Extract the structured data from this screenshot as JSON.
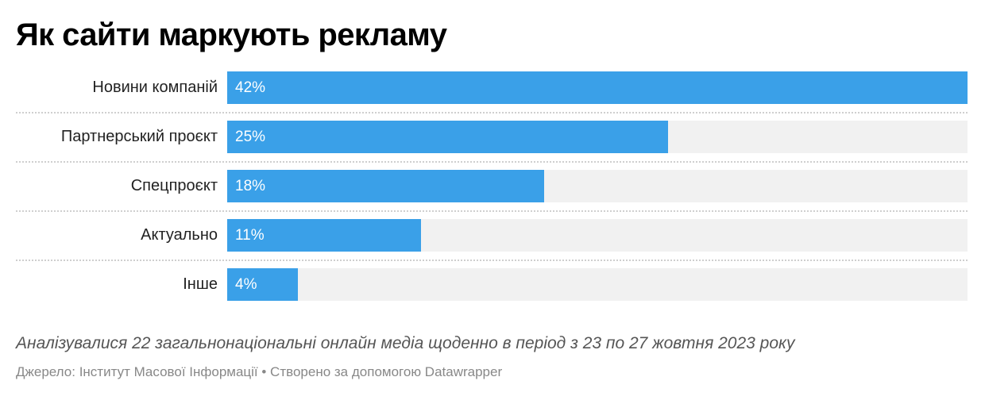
{
  "title": "Як сайти маркують рекламу",
  "note": "Аналізувалися 22 загальнонаціональні онлайн медіа щоденно в період з 23 по 27 жовтня 2023 року",
  "source": "Джерело: Інститут Масової Інформації • Створено за допомогою Datawrapper",
  "colors": {
    "bar": "#3aa0e8",
    "track": "#f1f1f1"
  },
  "chart_data": {
    "type": "bar",
    "orientation": "horizontal",
    "title": "Як сайти маркують рекламу",
    "categories": [
      "Новини компаній",
      "Партнерський проєкт",
      "Спецпроєкт",
      "Актуально",
      "Інше"
    ],
    "values": [
      42,
      25,
      18,
      11,
      4
    ],
    "value_labels": [
      "42%",
      "25%",
      "18%",
      "11%",
      "4%"
    ],
    "unit": "%",
    "xlim": [
      0,
      42
    ],
    "grid": false,
    "legend": "none"
  }
}
